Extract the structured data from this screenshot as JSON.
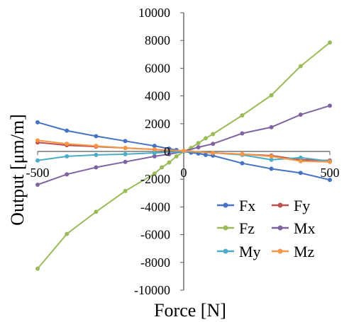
{
  "chart_data": {
    "type": "line",
    "xlabel": "Force [N]",
    "ylabel": "Output [μm/m]",
    "xlim": [
      -500,
      500
    ],
    "ylim": [
      -10000,
      10000
    ],
    "x_ticks": [
      "-500",
      "0",
      "500"
    ],
    "y_ticks": [
      "10000",
      "8000",
      "6000",
      "4000",
      "2000",
      "0",
      "-2000",
      "-4000",
      "-6000",
      "-8000",
      "-10000"
    ],
    "grid": false,
    "legend_position": "bottom-right",
    "series": [
      {
        "name": "Fx",
        "color": "#4472C4",
        "points": [
          [
            -500,
            2100
          ],
          [
            -400,
            1500
          ],
          [
            -300,
            1100
          ],
          [
            -200,
            750
          ],
          [
            -100,
            400
          ],
          [
            -50,
            200
          ],
          [
            -25,
            100
          ],
          [
            0,
            0
          ],
          [
            25,
            -80
          ],
          [
            50,
            -150
          ],
          [
            75,
            -250
          ],
          [
            100,
            -300
          ],
          [
            200,
            -850
          ],
          [
            300,
            -1250
          ],
          [
            400,
            -1550
          ],
          [
            500,
            -2050
          ]
        ]
      },
      {
        "name": "Fy",
        "color": "#C0504D",
        "points": [
          [
            -500,
            650
          ],
          [
            -400,
            450
          ],
          [
            -300,
            350
          ],
          [
            -200,
            250
          ],
          [
            -100,
            150
          ],
          [
            0,
            0
          ],
          [
            100,
            -100
          ],
          [
            200,
            -200
          ],
          [
            300,
            -300
          ],
          [
            400,
            -600
          ],
          [
            500,
            -650
          ]
        ]
      },
      {
        "name": "Fz",
        "color": "#9BBB59",
        "points": [
          [
            -500,
            -8450
          ],
          [
            -400,
            -5950
          ],
          [
            -300,
            -4350
          ],
          [
            -200,
            -2850
          ],
          [
            -100,
            -1600
          ],
          [
            -75,
            -1150
          ],
          [
            -50,
            -800
          ],
          [
            -25,
            -350
          ],
          [
            0,
            0
          ],
          [
            25,
            250
          ],
          [
            50,
            600
          ],
          [
            75,
            950
          ],
          [
            100,
            1250
          ],
          [
            200,
            2600
          ],
          [
            300,
            4050
          ],
          [
            400,
            6150
          ],
          [
            500,
            7850
          ]
        ]
      },
      {
        "name": "Mx",
        "color": "#8064A2",
        "points": [
          [
            -500,
            -2400
          ],
          [
            -400,
            -1650
          ],
          [
            -300,
            -1150
          ],
          [
            -200,
            -750
          ],
          [
            -100,
            -350
          ],
          [
            -50,
            -200
          ],
          [
            0,
            0
          ],
          [
            50,
            300
          ],
          [
            100,
            550
          ],
          [
            200,
            1300
          ],
          [
            300,
            1750
          ],
          [
            400,
            2650
          ],
          [
            500,
            3300
          ]
        ]
      },
      {
        "name": "My",
        "color": "#4BACC6",
        "points": [
          [
            -500,
            -650
          ],
          [
            -400,
            -350
          ],
          [
            -300,
            -250
          ],
          [
            -200,
            -200
          ],
          [
            -100,
            -100
          ],
          [
            0,
            0
          ],
          [
            100,
            -100
          ],
          [
            200,
            -250
          ],
          [
            300,
            -600
          ],
          [
            400,
            -450
          ],
          [
            500,
            -700
          ]
        ]
      },
      {
        "name": "Mz",
        "color": "#F79646",
        "points": [
          [
            -500,
            800
          ],
          [
            -400,
            550
          ],
          [
            -300,
            400
          ],
          [
            -200,
            250
          ],
          [
            -100,
            150
          ],
          [
            0,
            50
          ],
          [
            100,
            -100
          ],
          [
            200,
            -200
          ],
          [
            300,
            -350
          ],
          [
            400,
            -700
          ],
          [
            500,
            -750
          ]
        ]
      }
    ]
  }
}
